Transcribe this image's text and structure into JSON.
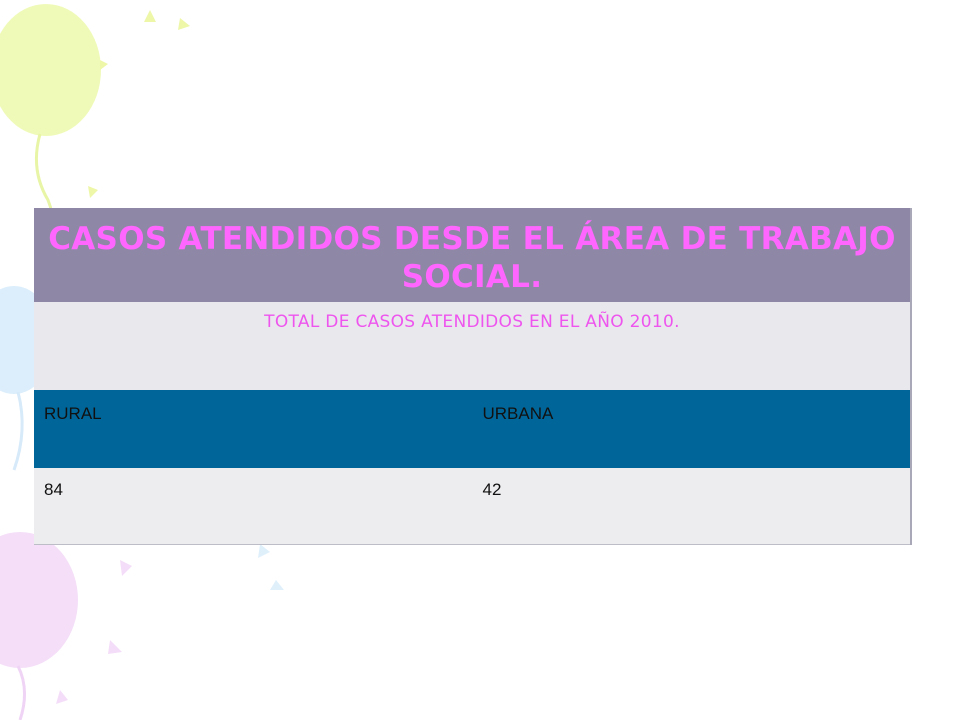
{
  "table": {
    "title": "CASOS ATENDIDOS DESDE EL ÁREA DE TRABAJO SOCIAL.",
    "subtitle": "TOTAL DE CASOS ATENDIDOS EN EL AÑO 2010.",
    "headers": [
      "RURAL",
      "URBANA"
    ],
    "values": [
      "84",
      "42"
    ]
  },
  "colors": {
    "title_band": "#8e88a6",
    "title_text": "#ff66ff",
    "header_band": "#006699",
    "row_band": "#ededf0"
  },
  "decorations": [
    "balloon-icon",
    "star-icon"
  ]
}
